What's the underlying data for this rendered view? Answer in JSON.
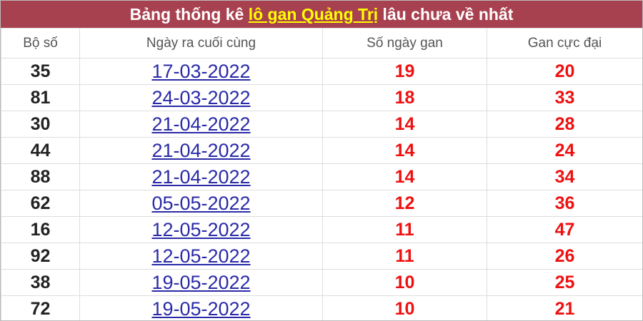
{
  "title": {
    "prefix": "Bảng thống kê ",
    "highlight": "lô gan Quảng Trị",
    "suffix": " lâu chưa về nhất"
  },
  "headers": [
    "Bộ số",
    "Ngày ra cuối cùng",
    "Số ngày gan",
    "Gan cực đại"
  ],
  "rows": [
    [
      "35",
      "17-03-2022",
      "19",
      "20"
    ],
    [
      "81",
      "24-03-2022",
      "18",
      "33"
    ],
    [
      "30",
      "21-04-2022",
      "14",
      "28"
    ],
    [
      "44",
      "21-04-2022",
      "14",
      "24"
    ],
    [
      "88",
      "21-04-2022",
      "14",
      "34"
    ],
    [
      "62",
      "05-05-2022",
      "12",
      "36"
    ],
    [
      "16",
      "12-05-2022",
      "11",
      "47"
    ],
    [
      "92",
      "12-05-2022",
      "11",
      "26"
    ],
    [
      "38",
      "19-05-2022",
      "10",
      "25"
    ],
    [
      "72",
      "19-05-2022",
      "10",
      "21"
    ]
  ],
  "colors": {
    "header_bg": "#a8414f",
    "highlight": "#ffff00",
    "link": "#2a2aa8",
    "value": "#ee1111"
  }
}
